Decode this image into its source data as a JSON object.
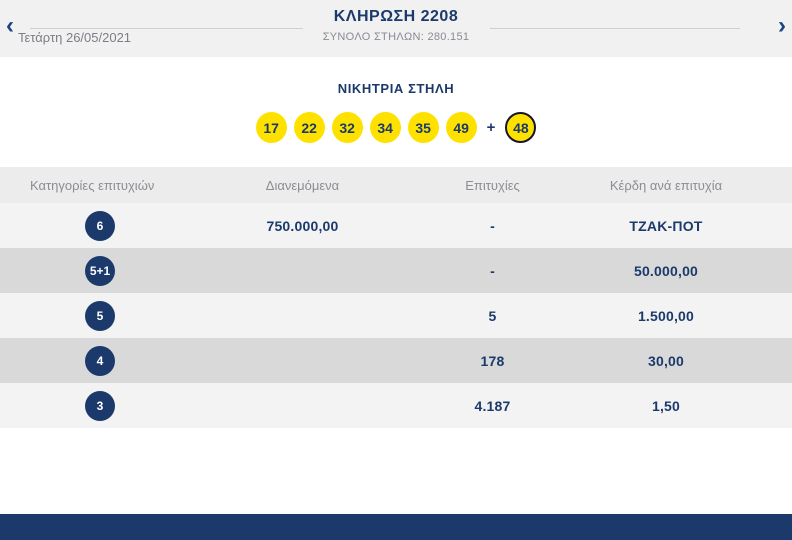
{
  "colors": {
    "navy": "#1b3a6b",
    "ball_yellow": "#ffe100",
    "topbar_bg": "#f1f1f2",
    "table_header_bg": "#ececec",
    "row_light": "#f3f3f3",
    "row_dark": "#d9d9da"
  },
  "topbar": {
    "prev_arrow": "‹",
    "next_arrow": "›",
    "date": "Τετάρτη 26/05/2021",
    "title": "ΚΛΗΡΩΣΗ 2208",
    "subtitle": "ΣΥΝΟΛΟ ΣΤΗΛΩΝ: 280.151"
  },
  "winning": {
    "label": "ΝΙΚΗΤΡΙΑ ΣΤΗΛΗ",
    "numbers": [
      "17",
      "22",
      "32",
      "34",
      "35",
      "49"
    ],
    "plus": "+",
    "bonus": "48"
  },
  "table": {
    "headers": [
      "Κατηγορίες επιτυχιών",
      "Διανεμόμενα",
      "Επιτυχίες",
      "Κέρδη ανά επιτυχία"
    ],
    "rows": [
      {
        "category": "6",
        "distributed": "750.000,00",
        "wins": "-",
        "prize": "ΤΖΑΚ-ΠΟΤ"
      },
      {
        "category": "5+1",
        "distributed": "",
        "wins": "-",
        "prize": "50.000,00"
      },
      {
        "category": "5",
        "distributed": "",
        "wins": "5",
        "prize": "1.500,00"
      },
      {
        "category": "4",
        "distributed": "",
        "wins": "178",
        "prize": "30,00"
      },
      {
        "category": "3",
        "distributed": "",
        "wins": "4.187",
        "prize": "1,50"
      }
    ]
  }
}
